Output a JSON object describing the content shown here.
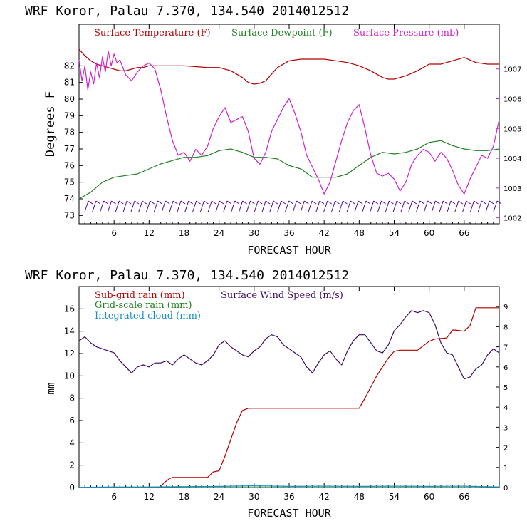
{
  "chart_data": [
    {
      "type": "line",
      "title": "WRF   Koror, Palau   7.370, 134.540  2014012512",
      "xlabel": "FORECAST HOUR",
      "ylabel": "Degrees F",
      "y2label": "Surface Pressure (mb)",
      "xlim": [
        0,
        72
      ],
      "ylim": [
        72.5,
        84.5
      ],
      "y2lim": [
        1001.8,
        1008.5
      ],
      "xticks": [
        "6",
        "12",
        "18",
        "24",
        "30",
        "36",
        "42",
        "48",
        "54",
        "60",
        "66"
      ],
      "yticks": [
        "73",
        "74",
        "75",
        "76",
        "77",
        "78",
        "79",
        "80",
        "81",
        "82"
      ],
      "y2ticks": [
        "1002",
        "1003",
        "1004",
        "1005",
        "1006",
        "1007"
      ],
      "colors": {
        "temp": "#b00000",
        "dew": "#208020",
        "pres": "#d020d0",
        "wind": "#5000a0"
      },
      "legend": {
        "temp": "Surface Temperature (F)",
        "dew": "Surface Dewpoint (F)",
        "pres": "Surface Pressure (mb)"
      },
      "series": [
        {
          "name": "Surface Temperature (F)",
          "axis": "left",
          "color": "#b00000",
          "x": [
            0,
            1,
            2,
            3,
            4,
            5,
            6,
            7,
            8,
            9,
            10,
            11,
            12,
            14,
            16,
            18,
            20,
            22,
            24,
            26,
            28,
            29,
            30,
            31,
            32,
            34,
            36,
            38,
            40,
            42,
            44,
            46,
            48,
            50,
            52,
            53,
            54,
            56,
            58,
            60,
            62,
            64,
            66,
            68,
            70,
            72
          ],
          "y": [
            83.0,
            82.6,
            82.3,
            82.1,
            82.0,
            81.9,
            81.8,
            81.7,
            81.7,
            81.8,
            81.9,
            81.9,
            82.0,
            82.0,
            82.0,
            82.0,
            81.95,
            81.9,
            81.9,
            81.7,
            81.3,
            81.0,
            80.9,
            80.95,
            81.1,
            81.9,
            82.3,
            82.4,
            82.4,
            82.4,
            82.3,
            82.2,
            82.0,
            81.7,
            81.3,
            81.2,
            81.2,
            81.4,
            81.7,
            82.1,
            82.1,
            82.3,
            82.5,
            82.2,
            82.1,
            82.1
          ]
        },
        {
          "name": "Surface Dewpoint (F)",
          "axis": "left",
          "color": "#208020",
          "x": [
            0,
            2,
            4,
            6,
            8,
            10,
            12,
            14,
            16,
            18,
            20,
            22,
            24,
            26,
            28,
            30,
            32,
            34,
            36,
            38,
            40,
            42,
            44,
            46,
            48,
            50,
            52,
            54,
            56,
            58,
            60,
            62,
            64,
            66,
            68,
            70,
            72
          ],
          "y": [
            74.0,
            74.4,
            75.0,
            75.3,
            75.4,
            75.5,
            75.8,
            76.1,
            76.3,
            76.5,
            76.5,
            76.6,
            76.9,
            77.0,
            76.8,
            76.5,
            76.5,
            76.4,
            76.0,
            75.8,
            75.3,
            75.3,
            75.3,
            75.5,
            76.0,
            76.5,
            76.8,
            76.7,
            76.8,
            77.0,
            77.4,
            77.5,
            77.2,
            77.0,
            76.9,
            76.9,
            77.0
          ]
        },
        {
          "name": "Surface Pressure (mb)",
          "axis": "right",
          "color": "#d020d0",
          "x": [
            0,
            0.5,
            1,
            1.5,
            2,
            2.5,
            3,
            3.5,
            4,
            4.5,
            5,
            5.5,
            6,
            6.5,
            7,
            8,
            9,
            10,
            11,
            12,
            13,
            14,
            15,
            16,
            17,
            18,
            19,
            20,
            21,
            22,
            23,
            24,
            25,
            26,
            27,
            28,
            29,
            30,
            31,
            32,
            33,
            34,
            35,
            36,
            37,
            38,
            39,
            40,
            41,
            42,
            43,
            44,
            45,
            46,
            47,
            48,
            49,
            50,
            51,
            52,
            53,
            54,
            55,
            56,
            57,
            58,
            59,
            60,
            61,
            62,
            63,
            64,
            65,
            66,
            67,
            68,
            69,
            70,
            71,
            72
          ],
          "y": [
            1007.3,
            1006.6,
            1007.1,
            1006.3,
            1006.9,
            1006.5,
            1007.2,
            1006.7,
            1007.4,
            1006.9,
            1007.6,
            1007.1,
            1007.5,
            1007.2,
            1007.3,
            1006.8,
            1006.6,
            1006.9,
            1007.1,
            1007.2,
            1007.0,
            1006.3,
            1005.4,
            1004.6,
            1004.1,
            1004.2,
            1003.9,
            1004.3,
            1004.1,
            1004.4,
            1005.0,
            1005.4,
            1005.7,
            1005.2,
            1005.3,
            1005.4,
            1004.9,
            1004.0,
            1003.8,
            1004.2,
            1004.9,
            1005.3,
            1005.7,
            1006.0,
            1005.5,
            1004.9,
            1004.1,
            1003.7,
            1003.3,
            1002.8,
            1003.2,
            1003.9,
            1004.6,
            1005.2,
            1005.6,
            1005.8,
            1005.0,
            1004.1,
            1003.5,
            1003.4,
            1003.5,
            1003.3,
            1002.9,
            1003.2,
            1003.8,
            1004.1,
            1004.3,
            1004.2,
            1003.9,
            1004.2,
            1004.0,
            1003.6,
            1003.1,
            1002.8,
            1003.3,
            1003.7,
            1004.1,
            1004.0,
            1004.4,
            1005.3
          ]
        }
      ],
      "wind_barbs": {
        "count": 54,
        "color": "#5000a0"
      }
    },
    {
      "type": "line",
      "title": "WRF   Koror, Palau   7.370, 134.540  2014012512",
      "xlabel": "FORECAST HOUR",
      "ylabel": "mm",
      "xlim": [
        0,
        72
      ],
      "ylim": [
        0,
        18
      ],
      "y2lim": [
        0,
        10
      ],
      "xticks": [
        "6",
        "12",
        "18",
        "24",
        "30",
        "36",
        "42",
        "48",
        "54",
        "60",
        "66"
      ],
      "yticks": [
        "0",
        "2",
        "4",
        "6",
        "8",
        "10",
        "12",
        "14",
        "16"
      ],
      "y2ticks": [
        "0",
        "1",
        "2",
        "3",
        "4",
        "5",
        "6",
        "7",
        "8",
        "9"
      ],
      "legend": {
        "subgrid": "Sub-grid rain (mm)",
        "wind": "Surface Wind Speed (m/s)",
        "gridscale": "Grid-scale rain (mm)",
        "cloud": "Integrated cloud (mm)"
      },
      "series": [
        {
          "name": "Sub-grid rain (mm)",
          "axis": "left",
          "color": "#b00000",
          "x": [
            0,
            14,
            14.5,
            15.5,
            16,
            22,
            23,
            24,
            25,
            26,
            27,
            28,
            29,
            30,
            40,
            48,
            49,
            50,
            51,
            52,
            53,
            54,
            55,
            56,
            58,
            59,
            60,
            61,
            63,
            64,
            64.5,
            66,
            67,
            68,
            70,
            72
          ],
          "y": [
            0,
            0,
            0.4,
            0.8,
            0.9,
            0.9,
            1.4,
            1.5,
            2.8,
            4.3,
            5.8,
            6.9,
            7.1,
            7.1,
            7.1,
            7.1,
            8.0,
            9.0,
            10.0,
            10.8,
            11.6,
            12.2,
            12.3,
            12.3,
            12.3,
            12.7,
            13.1,
            13.3,
            13.4,
            14.1,
            14.1,
            14.0,
            14.5,
            16.1,
            16.1,
            16.1
          ]
        },
        {
          "name": "Surface Wind Speed (m/s)",
          "axis": "right",
          "color": "#3c0a66",
          "x": [
            0,
            1,
            2,
            3,
            4,
            5,
            6,
            7,
            8,
            9,
            10,
            11,
            12,
            13,
            14,
            15,
            16,
            17,
            18,
            19,
            20,
            21,
            22,
            23,
            24,
            25,
            26,
            27,
            28,
            29,
            30,
            31,
            32,
            33,
            34,
            35,
            36,
            37,
            38,
            39,
            40,
            41,
            42,
            43,
            44,
            45,
            46,
            47,
            48,
            49,
            50,
            51,
            52,
            53,
            54,
            55,
            56,
            57,
            58,
            59,
            60,
            61,
            62,
            63,
            64,
            65,
            66,
            67,
            68,
            69,
            70,
            71,
            72
          ],
          "y": [
            7.3,
            7.5,
            7.2,
            7.0,
            6.9,
            6.8,
            6.7,
            6.3,
            6.0,
            5.7,
            6.0,
            6.1,
            6.0,
            6.2,
            6.2,
            6.3,
            6.1,
            6.4,
            6.6,
            6.4,
            6.2,
            6.1,
            6.3,
            6.6,
            7.1,
            7.3,
            7.0,
            6.8,
            6.6,
            6.5,
            6.8,
            7.0,
            7.4,
            7.6,
            7.5,
            7.1,
            6.9,
            6.7,
            6.5,
            6.0,
            5.7,
            6.2,
            6.6,
            6.8,
            6.4,
            6.1,
            6.8,
            7.3,
            7.6,
            7.6,
            7.2,
            6.8,
            6.7,
            7.1,
            7.8,
            8.1,
            8.5,
            8.8,
            8.7,
            8.8,
            8.7,
            8.1,
            7.2,
            6.7,
            6.6,
            6.0,
            5.4,
            5.5,
            5.9,
            6.1,
            6.6,
            6.9,
            6.7
          ]
        },
        {
          "name": "Grid-scale rain (mm)",
          "axis": "left",
          "color": "#208020",
          "x": [
            0,
            72
          ],
          "y": [
            0,
            0
          ]
        },
        {
          "name": "Integrated cloud (mm)",
          "axis": "left",
          "color": "#1a8ccc",
          "x": [
            0,
            6,
            12,
            18,
            24,
            30,
            36,
            42,
            48,
            54,
            60,
            66,
            72
          ],
          "y": [
            0.02,
            0.05,
            0.05,
            0.08,
            0.1,
            0.15,
            0.1,
            0.12,
            0.1,
            0.12,
            0.1,
            0.12,
            0.05
          ]
        }
      ]
    }
  ]
}
